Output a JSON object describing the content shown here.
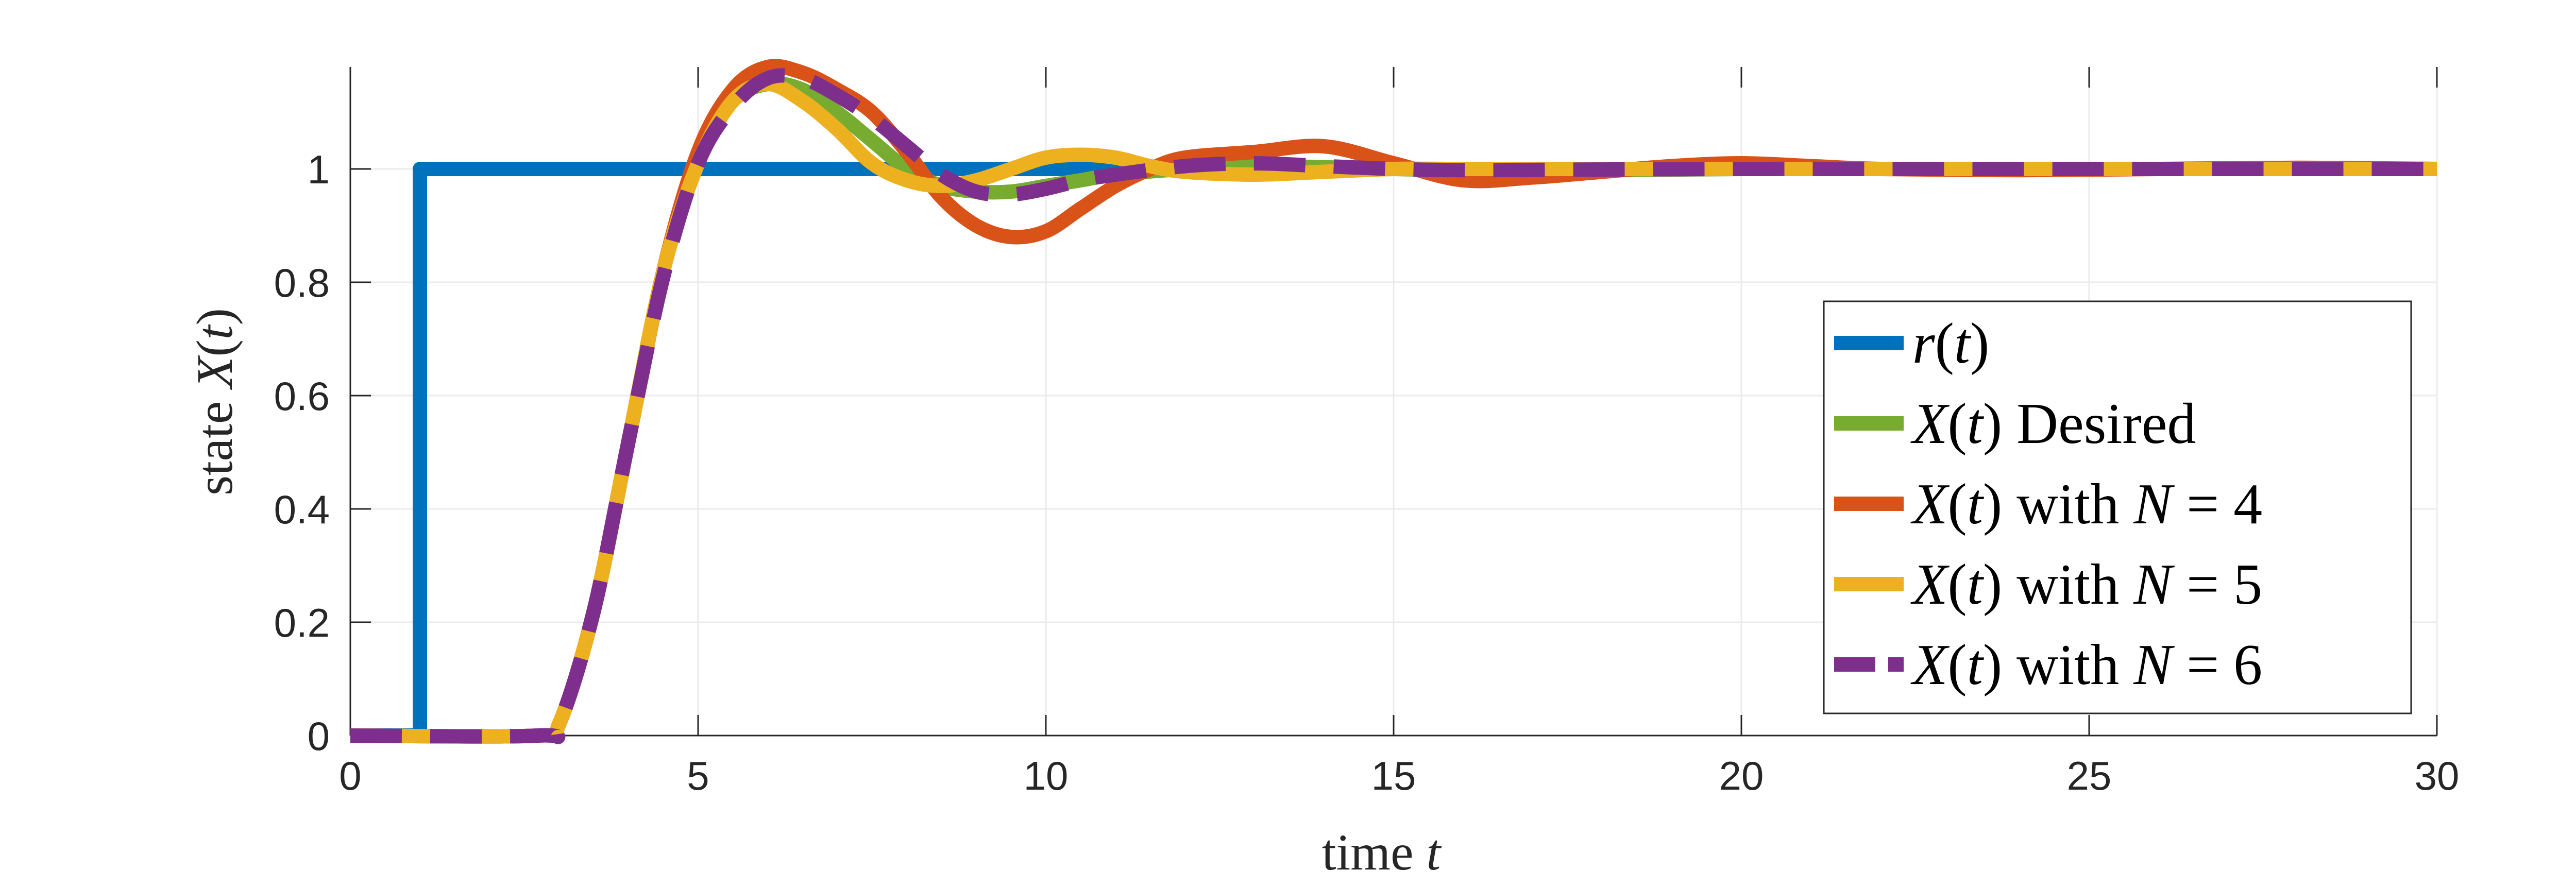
{
  "chart_data": {
    "type": "line",
    "title": "",
    "xlabel": {
      "prefix": "time ",
      "var": "t"
    },
    "ylabel": {
      "prefix": "state ",
      "var": "X",
      "open": "(",
      "arg": "t",
      "close": ")"
    },
    "xlim": [
      0,
      30
    ],
    "ylim": [
      0,
      1.18
    ],
    "xticks": [
      0,
      5,
      10,
      15,
      20,
      25,
      30
    ],
    "xtick_labels": [
      "0",
      "5",
      "10",
      "15",
      "20",
      "25",
      "30"
    ],
    "yticks": [
      0,
      0.2,
      0.4,
      0.6,
      0.8,
      1
    ],
    "ytick_labels": [
      "0",
      "0.2",
      "0.4",
      "0.6",
      "0.8",
      "1"
    ],
    "grid": true,
    "legend_position": "bottom-right",
    "series": [
      {
        "name": "r(t)",
        "legend": {
          "var": "r",
          "open": "(",
          "arg": "t",
          "close": ")",
          "suffix": ""
        },
        "color": "#0072BD",
        "dashed": false,
        "x": [
          0,
          0.95,
          0.95,
          1.0,
          1.0,
          30
        ],
        "y": [
          0,
          0,
          0,
          0,
          1,
          1
        ]
      },
      {
        "name": "X(t) Desired",
        "legend": {
          "var": "X",
          "open": "(",
          "arg": "t",
          "close": ")",
          "suffix": " Desired"
        },
        "color": "#77AC30",
        "dashed": false,
        "x": [
          0,
          2.7,
          3.0,
          3.5,
          4.0,
          4.5,
          5.0,
          5.5,
          6.0,
          6.5,
          7.0,
          7.5,
          8.0,
          8.5,
          9.0,
          9.5,
          10.0,
          10.5,
          11.0,
          12.0,
          13.0,
          14.0,
          15.0,
          16.0,
          18.0,
          20.0,
          22.0,
          25.0,
          28.0,
          30.0
        ],
        "y": [
          0,
          0,
          0.02,
          0.22,
          0.52,
          0.82,
          1.02,
          1.12,
          1.15,
          1.14,
          1.1,
          1.05,
          1.0,
          0.97,
          0.96,
          0.96,
          0.97,
          0.98,
          0.99,
          1.0,
          1.005,
          1.003,
          1.0,
          0.998,
          0.998,
          1.0,
          1.0,
          1.0,
          1.0,
          1.0
        ]
      },
      {
        "name": "X(t) with N = 4",
        "legend": {
          "var": "X",
          "open": "(",
          "arg": "t",
          "close": ")",
          "suffix": " with ",
          "var2": "N",
          "eq": " = 4"
        },
        "color": "#D95319",
        "dashed": false,
        "x": [
          0,
          2.7,
          3.0,
          3.5,
          4.0,
          4.5,
          5.0,
          5.5,
          6.0,
          6.5,
          7.0,
          7.5,
          8.0,
          8.5,
          9.0,
          9.5,
          10.0,
          10.5,
          11.0,
          11.5,
          12.0,
          13.0,
          14.0,
          15.0,
          16.0,
          17.0,
          18.0,
          19.0,
          20.0,
          21.0,
          22.0,
          24.0,
          26.0,
          28.0,
          30.0
        ],
        "y": [
          0,
          0,
          0.02,
          0.22,
          0.52,
          0.82,
          1.03,
          1.14,
          1.18,
          1.17,
          1.14,
          1.1,
          1.03,
          0.95,
          0.9,
          0.88,
          0.89,
          0.93,
          0.97,
          1.0,
          1.02,
          1.03,
          1.04,
          1.01,
          0.98,
          0.985,
          0.995,
          1.005,
          1.01,
          1.005,
          1.0,
          0.998,
          1.0,
          1.002,
          1.0
        ]
      },
      {
        "name": "X(t) with N = 5",
        "legend": {
          "var": "X",
          "open": "(",
          "arg": "t",
          "close": ")",
          "suffix": " with ",
          "var2": "N",
          "eq": " = 5"
        },
        "color": "#EDB120",
        "dashed": false,
        "x": [
          0,
          2.7,
          3.0,
          3.5,
          4.0,
          4.5,
          5.0,
          5.5,
          6.0,
          6.5,
          7.0,
          7.5,
          8.0,
          8.5,
          9.0,
          9.5,
          10.0,
          10.5,
          11.0,
          11.5,
          12.0,
          13.0,
          14.0,
          15.0,
          16.0,
          18.0,
          20.0,
          22.0,
          25.0,
          28.0,
          30.0
        ],
        "y": [
          0,
          0,
          0.02,
          0.22,
          0.52,
          0.82,
          1.01,
          1.12,
          1.15,
          1.12,
          1.07,
          1.01,
          0.98,
          0.97,
          0.98,
          1.0,
          1.02,
          1.025,
          1.02,
          1.005,
          0.995,
          0.99,
          0.995,
          1.0,
          1.0,
          1.0,
          1.0,
          1.0,
          1.0,
          1.0,
          1.0
        ]
      },
      {
        "name": "X(t) with N = 6",
        "legend": {
          "var": "X",
          "open": "(",
          "arg": "t",
          "close": ")",
          "suffix": " with ",
          "var2": "N",
          "eq": " = 6"
        },
        "color": "#7E2F8E",
        "dashed": true,
        "x": [
          0,
          2.7,
          3.0,
          3.5,
          4.0,
          4.5,
          5.0,
          5.5,
          6.0,
          6.5,
          7.0,
          7.5,
          8.0,
          8.5,
          9.0,
          9.5,
          10.0,
          10.5,
          11.0,
          12.0,
          13.0,
          14.0,
          15.0,
          16.0,
          18.0,
          20.0,
          22.0,
          25.0,
          28.0,
          30.0
        ],
        "y": [
          0,
          0,
          0.02,
          0.22,
          0.52,
          0.81,
          1.01,
          1.11,
          1.16,
          1.16,
          1.13,
          1.09,
          1.04,
          0.99,
          0.96,
          0.955,
          0.965,
          0.98,
          0.99,
          1.005,
          1.01,
          1.005,
          1.0,
          0.998,
          0.999,
          1.0,
          1.0,
          1.0,
          1.0,
          1.0
        ]
      }
    ]
  }
}
